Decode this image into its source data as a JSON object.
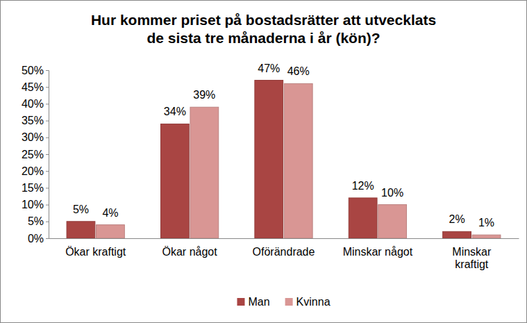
{
  "chart_data": {
    "type": "bar",
    "title": "Hur kommer priset på bostadsrätter att utvecklats de sista tre månaderna i år (kön)?",
    "categories": [
      "Ökar kraftigt",
      "Ökar något",
      "Oförändrade",
      "Minskar något",
      "Minskar kraftigt"
    ],
    "series": [
      {
        "name": "Man",
        "color": "#a94543",
        "values": [
          5,
          34,
          47,
          12,
          2
        ],
        "value_labels": [
          "5%",
          "34%",
          "47%",
          "12%",
          "2%"
        ]
      },
      {
        "name": "Kvinna",
        "color": "#d99694",
        "values": [
          4,
          39,
          46,
          10,
          1
        ],
        "value_labels": [
          "4%",
          "39%",
          "46%",
          "10%",
          "1%"
        ]
      }
    ],
    "ylim": [
      0,
      50
    ],
    "yticks": [
      {
        "value": 0,
        "label": "0%"
      },
      {
        "value": 5,
        "label": "5%"
      },
      {
        "value": 10,
        "label": "10%"
      },
      {
        "value": 15,
        "label": "15%"
      },
      {
        "value": 20,
        "label": "20%"
      },
      {
        "value": 25,
        "label": "25%"
      },
      {
        "value": 30,
        "label": "30%"
      },
      {
        "value": 35,
        "label": "35%"
      },
      {
        "value": 40,
        "label": "40%"
      },
      {
        "value": 45,
        "label": "45%"
      },
      {
        "value": 50,
        "label": "50%"
      }
    ],
    "grid": false,
    "legend": "bottom",
    "data_labels": true
  }
}
